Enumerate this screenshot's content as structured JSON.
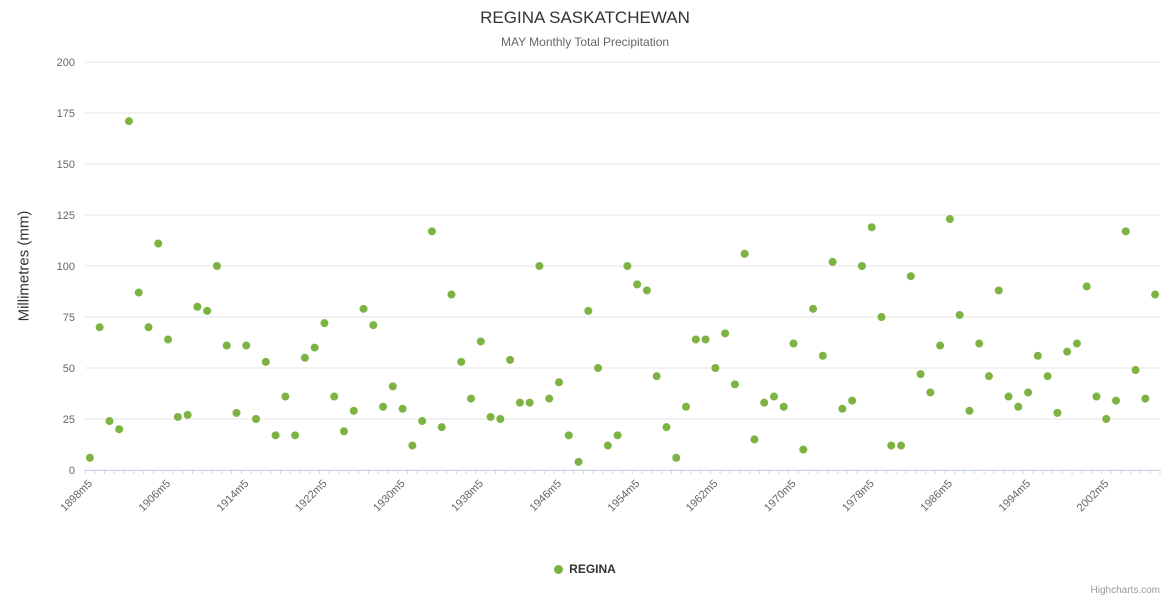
{
  "header": {
    "title": "REGINA SASKATCHEWAN",
    "subtitle": "MAY Monthly Total Precipitation"
  },
  "legend": {
    "label": "REGINA"
  },
  "credits": {
    "label": "Highcharts.com"
  },
  "chart_data": {
    "type": "scatter",
    "title": "REGINA SASKATCHEWAN",
    "subtitle": "MAY Monthly Total Precipitation",
    "ylabel": "Millimetres (mm)",
    "ylim": [
      0,
      200
    ],
    "yticks": [
      0,
      25,
      50,
      75,
      100,
      125,
      150,
      175,
      200
    ],
    "grid": true,
    "legend_position": "bottom-center",
    "x_start_year": 1898,
    "x_label_suffix": "m5",
    "x_label_interval": 8,
    "x_tick_labels": [
      "1898m5",
      "1906m5",
      "1914m5",
      "1922m5",
      "1930m5",
      "1938m5",
      "1946m5",
      "1954m5",
      "1962m5",
      "1970m5",
      "1978m5",
      "1986m5",
      "1994m5",
      "2002m5"
    ],
    "series": [
      {
        "name": "REGINA",
        "color": "#7cb342",
        "values": [
          6,
          70,
          24,
          20,
          171,
          87,
          70,
          111,
          64,
          26,
          27,
          80,
          78,
          100,
          61,
          28,
          61,
          25,
          53,
          17,
          36,
          17,
          55,
          60,
          72,
          36,
          19,
          29,
          79,
          71,
          31,
          41,
          30,
          12,
          24,
          117,
          21,
          86,
          53,
          35,
          63,
          26,
          25,
          54,
          33,
          33,
          100,
          35,
          43,
          17,
          4,
          78,
          50,
          12,
          17,
          100,
          91,
          88,
          46,
          21,
          6,
          31,
          64,
          64,
          50,
          67,
          42,
          106,
          15,
          33,
          36,
          31,
          62,
          10,
          79,
          56,
          102,
          30,
          34,
          100,
          119,
          75,
          12,
          12,
          95,
          47,
          38,
          61,
          123,
          76,
          29,
          62,
          46,
          88,
          36,
          31,
          38,
          56,
          46,
          28,
          58,
          62,
          90,
          36,
          25,
          34,
          117,
          49,
          35,
          86
        ]
      }
    ]
  }
}
